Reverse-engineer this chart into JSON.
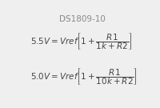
{
  "title": "DS1809-10",
  "title_fontsize": 7.5,
  "title_color": "#888888",
  "eq1_text": "$5.5V = Vref\\left[1 + \\dfrac{R1}{1k + R2}\\right]$",
  "eq2_text": "$5.0V = Vref\\left[1 + \\dfrac{R1}{10k + R2}\\right]$",
  "eq_fontsize": 7.5,
  "background_color": "#efefef",
  "text_color": "#444444",
  "figwidth": 2.01,
  "figheight": 1.35,
  "dpi": 100
}
